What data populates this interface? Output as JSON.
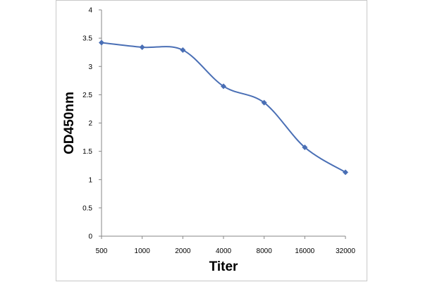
{
  "chart_data": {
    "type": "line",
    "title": "",
    "xlabel": "Titer",
    "ylabel": "OD450nm",
    "categories": [
      "500",
      "1000",
      "2000",
      "4000",
      "8000",
      "16000",
      "32000"
    ],
    "series": [
      {
        "values": [
          3.42,
          3.34,
          3.29,
          2.65,
          2.36,
          1.57,
          1.13
        ]
      }
    ],
    "ylim": [
      0,
      4
    ],
    "yticks": [
      "0",
      "0.5",
      "1",
      "1.5",
      "2",
      "2.5",
      "3",
      "3.5",
      "4"
    ],
    "grid": false,
    "legend": "none",
    "smooth": true,
    "marker": "diamond",
    "series_color": "#4a6fb5",
    "frame_color": "#c8c8c8"
  }
}
